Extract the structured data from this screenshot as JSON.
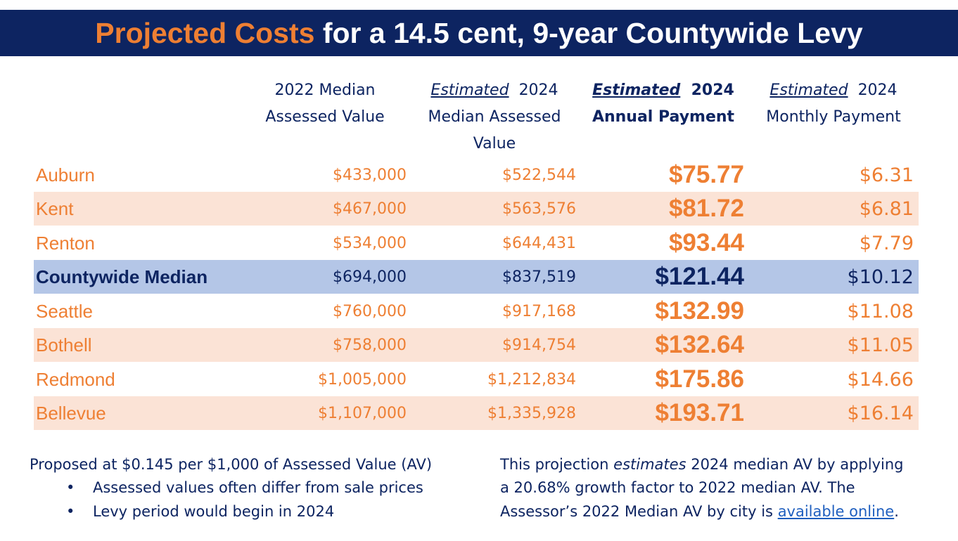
{
  "title": {
    "highlight": "Projected Costs",
    "rest": "for a 14.5 cent, 9-year Countywide Levy"
  },
  "columns": {
    "av2022": {
      "line1": "2022 Median",
      "line2": "Assessed Value"
    },
    "av2024": {
      "em": "Estimated",
      "line1_rest": "2024",
      "line2": "Median Assessed",
      "line3": "Value"
    },
    "annual": {
      "em": "Estimated",
      "line1_rest": "2024",
      "line2": "Annual Payment"
    },
    "monthly": {
      "em": "Estimated",
      "line1_rest": "2024",
      "line2": "Monthly Payment"
    }
  },
  "rows": [
    {
      "city": "Auburn",
      "av2022": "$433,000",
      "av2024": "$522,544",
      "annual": "$75.77",
      "monthly": "$6.31"
    },
    {
      "city": "Kent",
      "av2022": "$467,000",
      "av2024": "$563,576",
      "annual": "$81.72",
      "monthly": "$6.81"
    },
    {
      "city": "Renton",
      "av2022": "$534,000",
      "av2024": "$644,431",
      "annual": "$93.44",
      "monthly": "$7.79"
    },
    {
      "city": "Countywide Median",
      "av2022": "$694,000",
      "av2024": "$837,519",
      "annual": "$121.44",
      "monthly": "$10.12"
    },
    {
      "city": "Seattle",
      "av2022": "$760,000",
      "av2024": "$917,168",
      "annual": "$132.99",
      "monthly": "$11.08"
    },
    {
      "city": "Bothell",
      "av2022": "$758,000",
      "av2024": "$914,754",
      "annual": "$132.64",
      "monthly": "$11.05"
    },
    {
      "city": "Redmond",
      "av2022": "$1,005,000",
      "av2024": "$1,212,834",
      "annual": "$175.86",
      "monthly": "$14.66"
    },
    {
      "city": "Bellevue",
      "av2022": "$1,107,000",
      "av2024": "$1,335,928",
      "annual": "$193.71",
      "monthly": "$16.14"
    }
  ],
  "notes": {
    "proposed": "Proposed at $0.145 per $1,000 of Assessed Value (AV)",
    "bullets": [
      "Assessed values often differ from sale prices",
      "Levy period would begin in 2024"
    ],
    "bullet_char": "•",
    "projection": {
      "line1_a": "This projection",
      "line1_em": "estimates",
      "line1_b": "2024 median AV by applying",
      "line2": "a 20.68% growth factor to 2022 median AV. The",
      "line3_a": "Assessor’s 2022 Median AV by city is",
      "link": "available online",
      "line3_end": "."
    }
  },
  "colors": {
    "navy": "#0d2461",
    "orange": "#ee7f33",
    "row_shade": "#fbe3d6",
    "median_row": "#b4c6e7",
    "link": "#1f5fbf"
  }
}
